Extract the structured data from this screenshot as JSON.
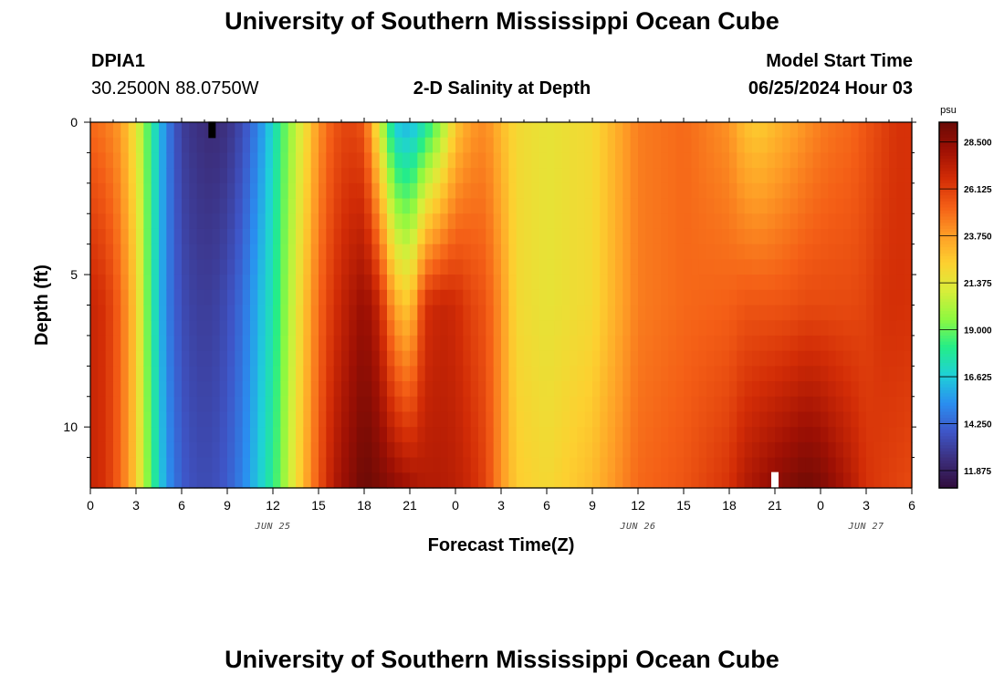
{
  "header": {
    "title": "University of Southern Mississippi Ocean Cube",
    "station_id": "DPIA1",
    "coordinates": "30.2500N  88.0750W",
    "plot_title": "2-D Salinity at Depth",
    "model_start_label": "Model Start Time",
    "model_start_value": "06/25/2024 Hour 03"
  },
  "footer": {
    "title": "University of Southern Mississippi Ocean Cube"
  },
  "chart_data": {
    "type": "heatmap",
    "title": "2-D Salinity at Depth",
    "xlabel": "Forecast Time(Z)",
    "ylabel": "Depth (ft)",
    "x_hours_range": [
      0,
      54
    ],
    "y_range": [
      0,
      12
    ],
    "y_inverted": true,
    "x_tick_labels": [
      "0",
      "3",
      "6",
      "9",
      "12",
      "15",
      "18",
      "21",
      "0",
      "3",
      "6",
      "9",
      "12",
      "15",
      "18",
      "21",
      "0",
      "3",
      "6"
    ],
    "y_ticks": [
      0,
      5,
      10
    ],
    "date_labels": [
      {
        "text": "JUN 25",
        "hour": 12
      },
      {
        "text": "JUN 26",
        "hour": 36
      },
      {
        "text": "JUN 27",
        "hour": 51
      }
    ],
    "colorbar": {
      "unit": "psu",
      "min": 11.0,
      "max": 29.5,
      "ticks": [
        "28.500",
        "26.125",
        "23.750",
        "21.375",
        "19.000",
        "16.625",
        "14.250",
        "11.875"
      ],
      "colors": [
        "#300c3c",
        "#3c2e7c",
        "#3e56c8",
        "#2a8ef0",
        "#1fd0d8",
        "#24ed88",
        "#8ef840",
        "#d8ee3a",
        "#fdd030",
        "#fe9c26",
        "#f45e16",
        "#d22c06",
        "#9e1004",
        "#6a0a06"
      ]
    },
    "profile_depths_ft": [
      0,
      6,
      12
    ],
    "profile_hours": [
      0,
      1,
      2,
      3,
      4,
      5,
      6,
      7,
      8,
      9,
      10,
      11,
      12,
      13,
      14,
      15,
      16,
      17,
      18,
      19,
      20,
      21,
      22,
      23,
      24,
      25,
      26,
      27,
      28,
      30,
      33,
      36,
      39,
      42,
      43,
      44,
      45,
      46,
      47,
      48,
      49,
      50,
      51,
      52,
      53,
      54
    ],
    "salinity_surface": [
      25.0,
      24.6,
      23.8,
      21.5,
      18.0,
      15.0,
      13.0,
      12.5,
      12.3,
      12.5,
      13.5,
      15.0,
      17.0,
      19.5,
      21.5,
      24.0,
      25.5,
      26.0,
      25.5,
      21.0,
      16.5,
      16.0,
      17.5,
      19.5,
      22.5,
      23.8,
      24.2,
      23.0,
      22.0,
      21.5,
      22.0,
      24.5,
      25.0,
      24.0,
      22.8,
      22.5,
      23.0,
      23.5,
      24.0,
      24.5,
      24.8,
      25.0,
      25.5,
      26.0,
      26.5,
      26.5
    ],
    "salinity_mid": [
      27.0,
      26.5,
      25.0,
      22.5,
      18.0,
      15.0,
      13.5,
      13.0,
      13.0,
      13.5,
      14.5,
      16.0,
      17.5,
      20.0,
      22.5,
      25.0,
      26.5,
      27.5,
      28.3,
      27.0,
      23.5,
      22.5,
      26.5,
      27.0,
      26.8,
      26.0,
      25.5,
      24.0,
      22.0,
      21.5,
      22.0,
      24.5,
      25.0,
      25.2,
      25.5,
      25.5,
      25.5,
      25.6,
      25.8,
      25.8,
      25.8,
      25.8,
      26.0,
      26.5,
      26.6,
      26.5
    ],
    "salinity_bottom": [
      27.0,
      26.5,
      25.0,
      22.5,
      18.5,
      15.5,
      14.0,
      13.5,
      13.5,
      14.0,
      15.0,
      16.5,
      18.0,
      20.5,
      23.0,
      25.5,
      27.5,
      28.5,
      29.5,
      29.0,
      28.5,
      28.0,
      27.5,
      27.5,
      27.3,
      26.8,
      26.0,
      24.0,
      22.5,
      22.0,
      23.0,
      25.0,
      25.5,
      26.5,
      27.5,
      28.0,
      28.5,
      28.9,
      29.3,
      29.0,
      28.2,
      27.5,
      26.5,
      26.2,
      26.0,
      25.8
    ],
    "markers": [
      {
        "label": "data-gap-marker",
        "hour": 8,
        "depth_ft": 0.25,
        "color": "#000000"
      },
      {
        "label": "data-gap-marker",
        "hour": 45,
        "depth_ft": 11.75,
        "color": "#ffffff"
      }
    ]
  }
}
